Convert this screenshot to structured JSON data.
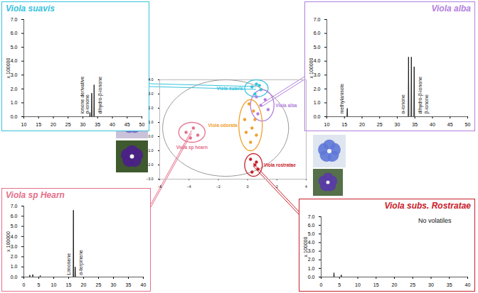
{
  "chart_data": [
    {
      "type": "line",
      "title": "Viola suavis",
      "color": "#36c3de",
      "x": [
        10,
        32.3,
        32.4,
        32.5,
        32.9,
        33.0,
        33.1,
        33.7,
        33.8,
        33.9,
        50
      ],
      "values": [
        0,
        0,
        0.3,
        0,
        0,
        1.7,
        0,
        0,
        2.3,
        0,
        0
      ],
      "xlim": [
        10,
        50
      ],
      "xticks": [
        10,
        15,
        20,
        25,
        30,
        35,
        40,
        45,
        50
      ],
      "ylim": [
        0,
        7
      ],
      "yticks": [
        0,
        1,
        2,
        3,
        4,
        5,
        6,
        7
      ],
      "y_label": "x 100000",
      "annotations": [
        {
          "text": "ionone derivative",
          "x": 29.8,
          "y": 0.2
        },
        {
          "text": "α-ionone",
          "x": 31.6,
          "y": 0.2
        },
        {
          "text": "dihydro-β-ionone",
          "x": 35.8,
          "y": 0.2
        }
      ]
    },
    {
      "type": "line",
      "title": "Viola alba",
      "color": "#b27fde",
      "x": [
        10,
        15.7,
        15.8,
        15.9,
        33.1,
        33.2,
        33.3,
        33.9,
        34.0,
        34.1,
        34.7,
        34.8,
        34.9,
        50
      ],
      "values": [
        0,
        0,
        0.6,
        0,
        0,
        4.3,
        0,
        0,
        4.3,
        0,
        0,
        3.6,
        0,
        0
      ],
      "xlim": [
        10,
        50
      ],
      "xticks": [
        10,
        15,
        20,
        25,
        30,
        35,
        40,
        45,
        50
      ],
      "ylim": [
        0,
        7
      ],
      "yticks": [
        0,
        1,
        2,
        3,
        4,
        5,
        6,
        7
      ],
      "y_label": "x 100000",
      "annotations": [
        {
          "text": "methylanisole",
          "x": 14.2,
          "y": 0.2
        },
        {
          "text": "α-ionone",
          "x": 31.6,
          "y": 0.2
        },
        {
          "text": "dihydro-β-ionone",
          "x": 36.5,
          "y": 0.2
        },
        {
          "text": "β-ionone",
          "x": 38.3,
          "y": 0.2
        }
      ]
    },
    {
      "type": "line",
      "title": "Viola sp Hearn",
      "color": "#e5708b",
      "x": [
        0,
        1.9,
        2.0,
        2.1,
        2.9,
        3.0,
        3.1,
        5.4,
        5.5,
        5.6,
        16.5,
        16.6,
        16.7,
        17.1,
        17.2,
        17.3,
        40
      ],
      "values": [
        0,
        0,
        0.2,
        0,
        0,
        0.25,
        0,
        0,
        0.15,
        0,
        0,
        6.6,
        0,
        0,
        1.0,
        0,
        0
      ],
      "xlim": [
        0,
        40
      ],
      "xticks": [
        0,
        5,
        10,
        15,
        20,
        25,
        30,
        35,
        40
      ],
      "ylim": [
        0,
        7
      ],
      "yticks": [
        0,
        1,
        2,
        3,
        4,
        5,
        6,
        7
      ],
      "y_label": "x 100000",
      "annotations": [
        {
          "text": "Limonene",
          "x": 15.0,
          "y": 0.2
        },
        {
          "text": "α-terpinene",
          "x": 19.0,
          "y": 0.2
        }
      ]
    },
    {
      "type": "line",
      "title": "Viola subs. Rostratae",
      "color": "#c8202a",
      "x": [
        0,
        3.4,
        3.5,
        3.6,
        5.4,
        5.5,
        5.6,
        40
      ],
      "values": [
        0,
        0,
        0.5,
        0,
        0,
        0.25,
        0,
        0
      ],
      "xlim": [
        0,
        40
      ],
      "xticks": [
        0,
        5,
        10,
        15,
        20,
        25,
        30,
        35,
        40
      ],
      "ylim": [
        0,
        7
      ],
      "yticks": [
        0,
        1,
        2,
        3,
        4,
        5,
        6,
        7
      ],
      "y_label": "x 100000",
      "annotations": [
        {
          "text": "No volatiles",
          "x": 31,
          "y": 6.5
        }
      ]
    },
    {
      "type": "scatter",
      "xlim": [
        -6,
        4
      ],
      "xticks": [
        -6,
        -4,
        -2,
        0,
        2,
        4
      ],
      "ylim": [
        -3,
        4
      ],
      "yticks": [
        -3,
        -2,
        -1,
        0,
        1,
        2,
        3,
        4
      ],
      "ellipse": {
        "center": [
          -1.5,
          0.6
        ],
        "radii": [
          4.3,
          3.4
        ]
      },
      "series": [
        {
          "name": "Viola suavis",
          "color": "#36c3de",
          "x": [
            0.3,
            0.6,
            0.9,
            0.5,
            0.8
          ],
          "values": [
            3.5,
            3.7,
            3.3,
            3.0,
            3.6
          ],
          "ellipse": {
            "center": [
              0.6,
              3.4
            ],
            "radii": [
              0.8,
              0.6
            ]
          }
        },
        {
          "name": "Viola alba",
          "color": "#b27fde",
          "x": [
            0.6,
            1.2,
            0.9,
            1.4,
            0.7
          ],
          "values": [
            2.8,
            2.6,
            2.2,
            1.9,
            1.6
          ],
          "ellipse": {
            "center": [
              1.0,
              2.2
            ],
            "radii": [
              0.8,
              1.1
            ]
          }
        },
        {
          "name": "Viola sp hearn",
          "color": "#e5708b",
          "x": [
            -4.2,
            -3.7,
            -3.4,
            -3.9
          ],
          "values": [
            0.3,
            0.6,
            0.1,
            -0.1
          ],
          "ellipse": {
            "center": [
              -3.8,
              0.3
            ],
            "radii": [
              0.9,
              0.7
            ]
          }
        },
        {
          "name": "Viola rostratae",
          "color": "#c8202a",
          "x": [
            0.2,
            0.5,
            0.7,
            0.3,
            0.6
          ],
          "values": [
            -1.6,
            -2.0,
            -2.3,
            -2.5,
            -1.8
          ],
          "ellipse": {
            "center": [
              0.4,
              -2.0
            ],
            "radii": [
              0.6,
              0.8
            ]
          }
        },
        {
          "name": "Viola odorata",
          "color": "#f0a030",
          "x": [
            0.1,
            0.4,
            -0.2,
            0.3,
            0.6,
            0.2,
            0.5,
            -0.1
          ],
          "values": [
            2.3,
            1.8,
            1.2,
            0.6,
            0.1,
            -0.4,
            1.2,
            0.3
          ],
          "ellipse": {
            "center": [
              0.2,
              0.8
            ],
            "radii": [
              0.8,
              1.8
            ]
          }
        }
      ]
    }
  ]
}
